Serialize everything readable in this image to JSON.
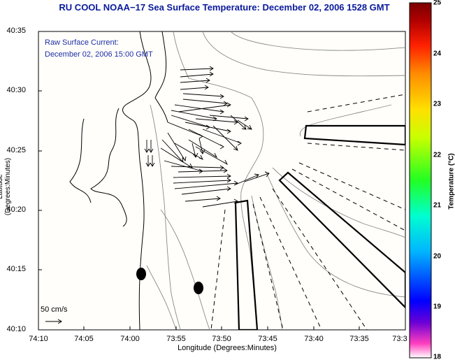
{
  "title": "RU COOL  NOAA−17  Sea Surface Temperature:  December 02, 2006 1528 GMT",
  "current_label": {
    "line1": "Raw Surface Current:",
    "line2": "December 02, 2006 15:00 GMT"
  },
  "scale": {
    "label": "50 cm/s"
  },
  "axes": {
    "y_title": "Latitude (Degrees:Minutes)",
    "x_title": "Longitude (Degrees:Minutes)",
    "y_ticks": [
      "40:35",
      "40:30",
      "40:25",
      "40:20",
      "40:15",
      "40:10"
    ],
    "x_ticks": [
      "74:10",
      "74:05",
      "74:00",
      "73:55",
      "73:50",
      "73:45",
      "73:40",
      "73:35",
      "73:3"
    ]
  },
  "colorbar": {
    "title": "Temperature (°C)",
    "ticks": [
      "25",
      "24",
      "23",
      "22",
      "21",
      "20",
      "19",
      "18"
    ],
    "range": [
      18,
      25
    ],
    "stops": [
      "#ff3fbf",
      "#6a00d6",
      "#0000ff",
      "#00b6ff",
      "#00ffd0",
      "#22ff22",
      "#c8ff00",
      "#ffe000",
      "#ff8c00",
      "#ff2000",
      "#b00000",
      "#7a0000"
    ]
  },
  "map": {
    "background": "#fffefa",
    "line_color": "#000000",
    "contour_color": "#8a8a8a"
  }
}
